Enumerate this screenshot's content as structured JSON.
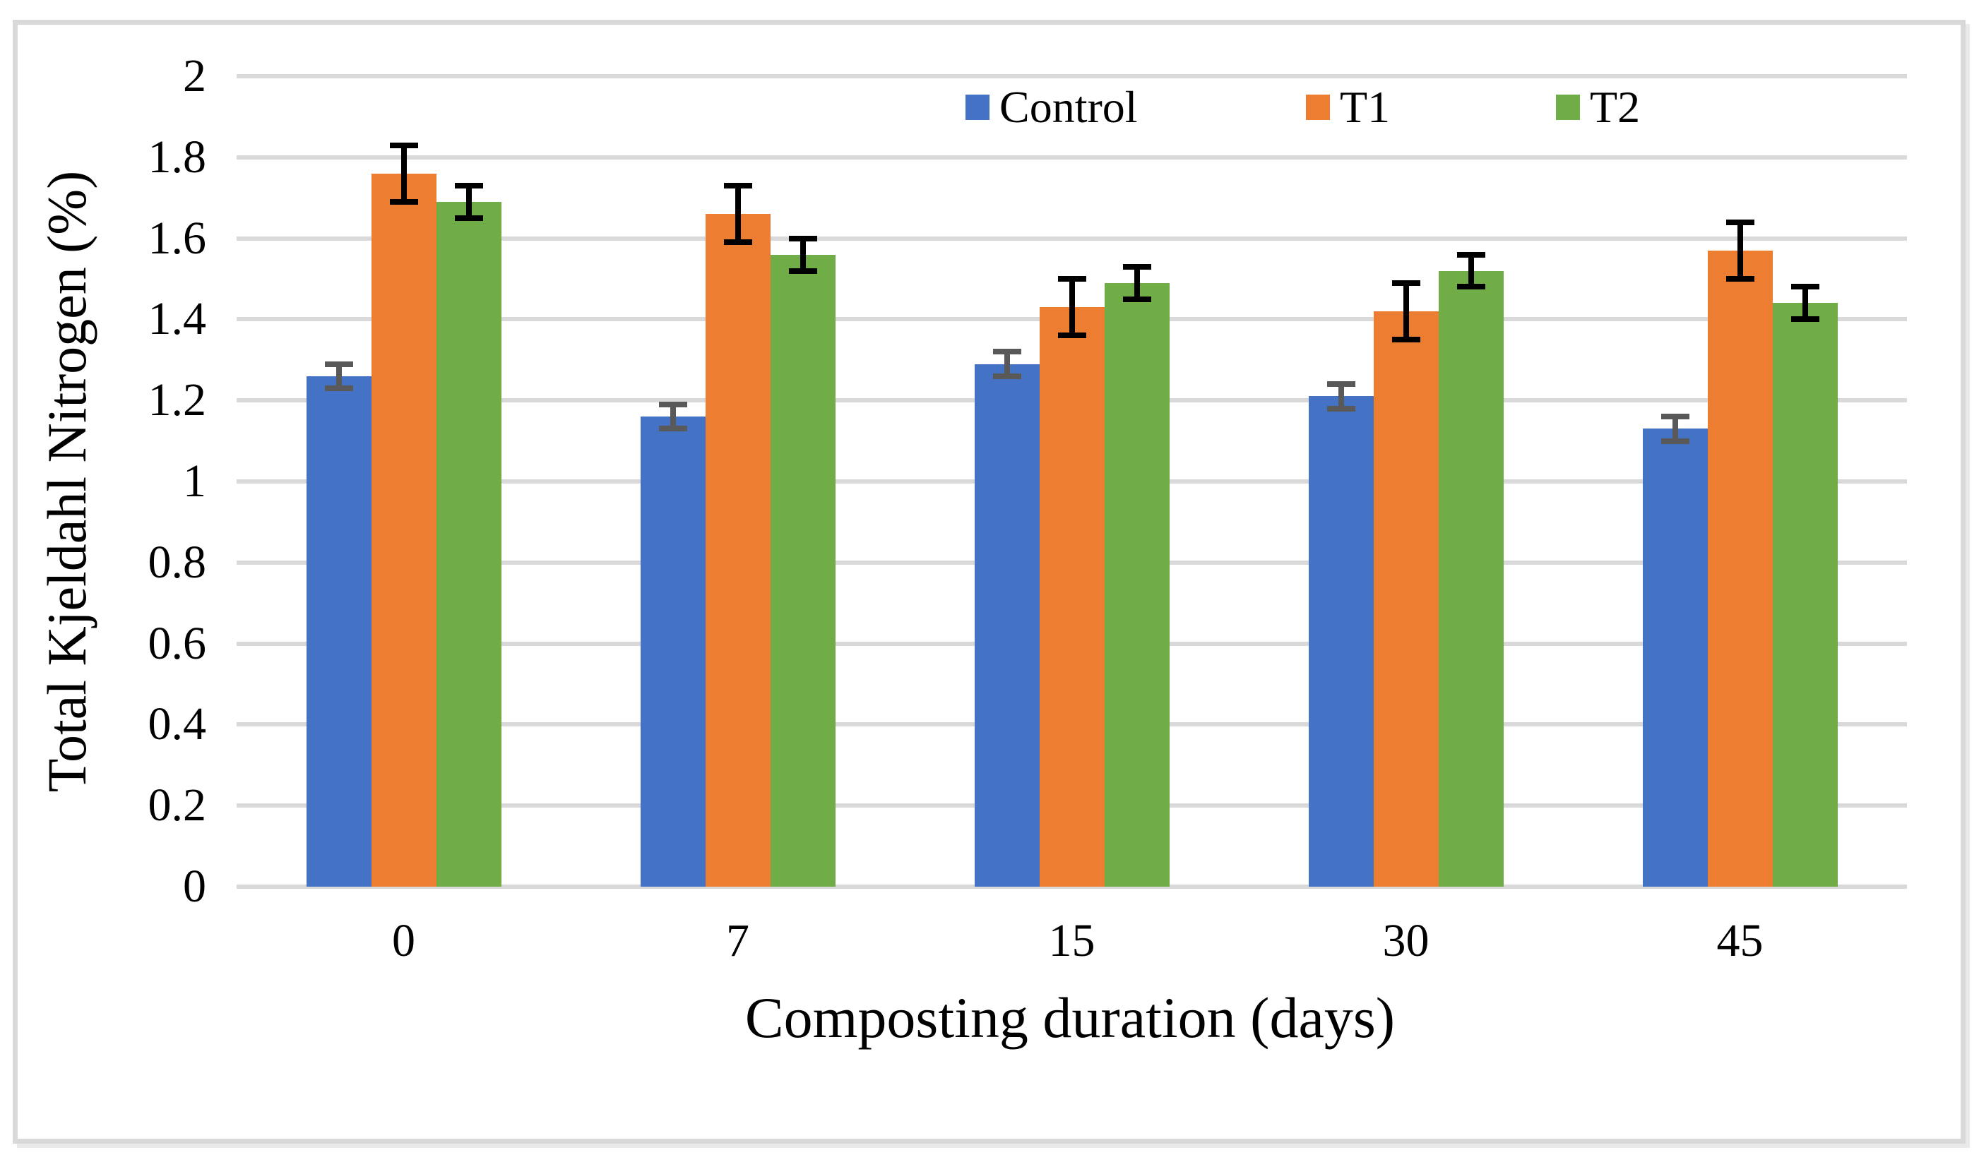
{
  "figure": {
    "background": "#FFFFFF",
    "border_color": "#D9D9D9"
  },
  "chart_data": {
    "type": "bar",
    "title": "",
    "xlabel": "Composting duration (days)",
    "ylabel": "Total Kjeldahl Nitrogen (%)",
    "categories": [
      "0",
      "7",
      "15",
      "30",
      "45"
    ],
    "series": [
      {
        "name": "Control",
        "color": "#4472C4",
        "error_bar_color": "#595959",
        "values": [
          1.26,
          1.16,
          1.29,
          1.21,
          1.13
        ],
        "errors": [
          0.03,
          0.03,
          0.03,
          0.03,
          0.03
        ]
      },
      {
        "name": "T1",
        "color": "#ED7D31",
        "error_bar_color": "#000000",
        "values": [
          1.76,
          1.66,
          1.43,
          1.42,
          1.57
        ],
        "errors": [
          0.07,
          0.07,
          0.07,
          0.07,
          0.07
        ]
      },
      {
        "name": "T2",
        "color": "#70AD47",
        "error_bar_color": "#000000",
        "values": [
          1.69,
          1.56,
          1.49,
          1.52,
          1.44
        ],
        "errors": [
          0.04,
          0.04,
          0.04,
          0.04,
          0.04
        ]
      }
    ],
    "ylim": [
      0,
      2
    ],
    "yticks": [
      "2",
      "1.8",
      "1.6",
      "1.4",
      "1.2",
      "1",
      "0.8",
      "0.6",
      "0.4",
      "0.2",
      "0"
    ],
    "grid": true,
    "grid_color": "#D9D9D9",
    "legend_position": "top-right-inside"
  }
}
